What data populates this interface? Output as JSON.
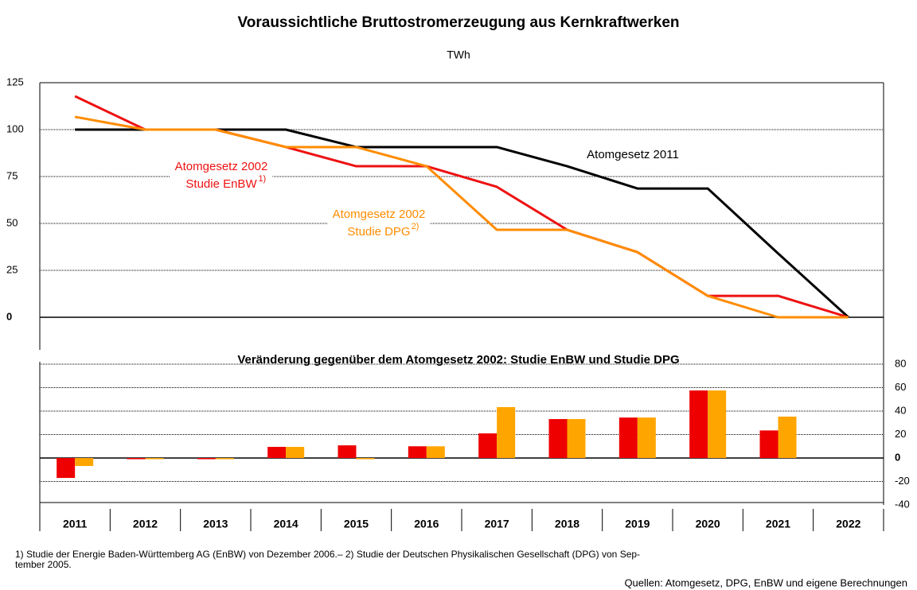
{
  "chart_data": [
    {
      "type": "line",
      "title": "Voraussichtliche Bruttostromerzeugung aus Kernkraftwerken",
      "subtitle": "TWh",
      "categories": [
        "2011",
        "2012",
        "2013",
        "2014",
        "2015",
        "2016",
        "2017",
        "2018",
        "2019",
        "2020",
        "2021",
        "2022"
      ],
      "ylim": [
        0,
        125
      ],
      "yticks": [
        0,
        25,
        50,
        75,
        100,
        125
      ],
      "grid": true,
      "series": [
        {
          "name": "Atomgesetz 2011",
          "color": "#000000",
          "values": [
            100,
            100,
            100,
            100,
            90.7,
            90.7,
            90.7,
            80.5,
            68.6,
            68.6,
            34,
            0
          ]
        },
        {
          "name": "Atomgesetz 2002",
          "study": "Studie EnBW",
          "note": "1)",
          "color": "#ee1111",
          "values": [
            117.8,
            100,
            100,
            90.7,
            80.5,
            80.5,
            69.5,
            46.6,
            34.7,
            11.4,
            11.4,
            0
          ]
        },
        {
          "name": "Atomgesetz 2002",
          "study": "Studie DPG",
          "note": "2)",
          "color": "#ff8c00",
          "values": [
            106.8,
            100,
            100,
            90.7,
            90.7,
            80.5,
            46.6,
            46.6,
            34.7,
            11.4,
            0,
            0
          ]
        }
      ]
    },
    {
      "type": "bar",
      "title": "Veränderung gegenüber dem Atomgesetz 2002: Studie EnBW und Studie DPG",
      "ylim": [
        -40,
        80
      ],
      "yticks": [
        -40,
        -20,
        0,
        20,
        40,
        60,
        80
      ],
      "y_axis_position": "right",
      "grid": true,
      "series": [
        {
          "color": "#ee0000",
          "values": [
            -17,
            0,
            0,
            9.5,
            10.8,
            10,
            21,
            33.2,
            34.5,
            57.6,
            23.5,
            null
          ]
        },
        {
          "color": "#ffa500",
          "values": [
            -6.8,
            0,
            0,
            9.5,
            0,
            10,
            43.4,
            33.2,
            34.5,
            57.6,
            35.3,
            null
          ]
        }
      ]
    }
  ],
  "footnote_lines": [
    "1) Studie der Energie Baden-Württemberg AG (EnBW) von Dezember 2006.– 2) Studie der Deutschen Physikalischen Gesellschaft (DPG) von Sep-",
    "tember 2005."
  ],
  "source": "Quellen: Atomgesetz, DPG, EnBW und eigene Berechnungen"
}
